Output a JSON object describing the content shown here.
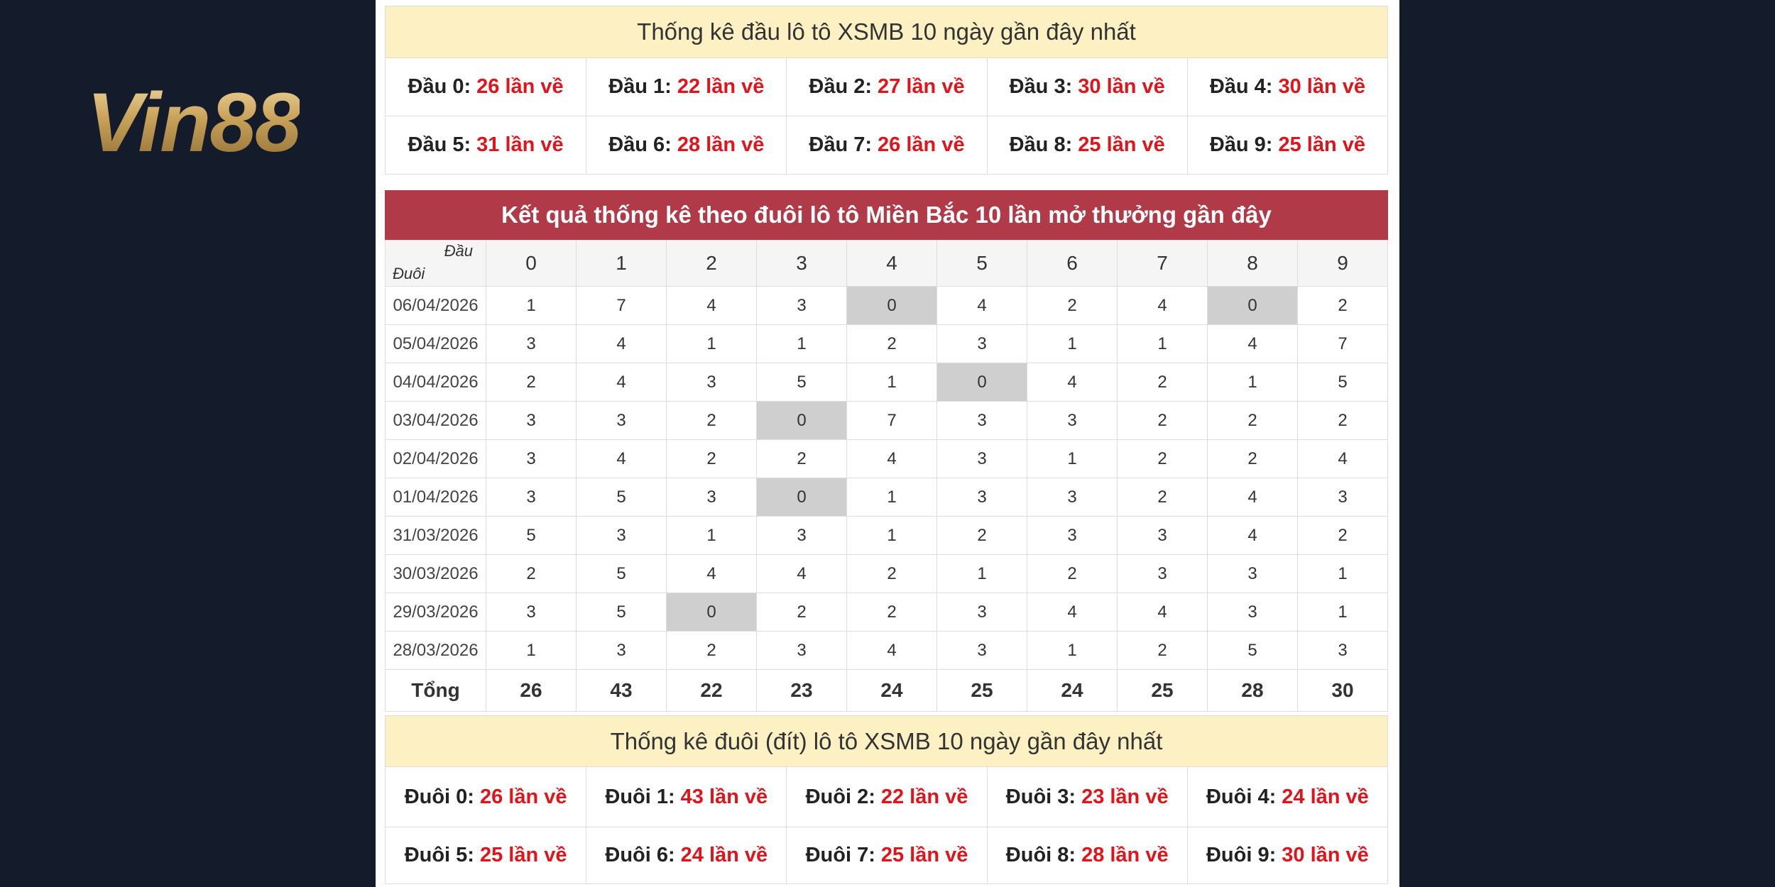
{
  "logo": "Vin88",
  "head_stats": {
    "title": "Thống kê đầu lô tô XSMB 10 ngày gần đây nhất",
    "items": [
      {
        "label": "Đầu 0:",
        "value": "26 lần về"
      },
      {
        "label": "Đầu 1:",
        "value": "22 lần về"
      },
      {
        "label": "Đầu 2:",
        "value": "27 lần về"
      },
      {
        "label": "Đầu 3:",
        "value": "30 lần về"
      },
      {
        "label": "Đầu 4:",
        "value": "30 lần về"
      },
      {
        "label": "Đầu 5:",
        "value": "31 lần về"
      },
      {
        "label": "Đầu 6:",
        "value": "28 lần về"
      },
      {
        "label": "Đầu 7:",
        "value": "26 lần về"
      },
      {
        "label": "Đầu 8:",
        "value": "25 lần về"
      },
      {
        "label": "Đầu 9:",
        "value": "25 lần về"
      }
    ]
  },
  "tail_table": {
    "title": "Kết quả thống kê theo đuôi lô tô Miền Bắc 10 lần mở thưởng gần đây",
    "corner_top": "Đầu",
    "corner_bottom": "Đuôi",
    "columns": [
      "0",
      "1",
      "2",
      "3",
      "4",
      "5",
      "6",
      "7",
      "8",
      "9"
    ],
    "rows": [
      {
        "date": "06/04/2026",
        "values": [
          1,
          7,
          4,
          3,
          0,
          4,
          2,
          4,
          0,
          2
        ]
      },
      {
        "date": "05/04/2026",
        "values": [
          3,
          4,
          1,
          1,
          2,
          3,
          1,
          1,
          4,
          7
        ]
      },
      {
        "date": "04/04/2026",
        "values": [
          2,
          4,
          3,
          5,
          1,
          0,
          4,
          2,
          1,
          5
        ]
      },
      {
        "date": "03/04/2026",
        "values": [
          3,
          3,
          2,
          0,
          7,
          3,
          3,
          2,
          2,
          2
        ]
      },
      {
        "date": "02/04/2026",
        "values": [
          3,
          4,
          2,
          2,
          4,
          3,
          1,
          2,
          2,
          4
        ]
      },
      {
        "date": "01/04/2026",
        "values": [
          3,
          5,
          3,
          0,
          1,
          3,
          3,
          2,
          4,
          3
        ]
      },
      {
        "date": "31/03/2026",
        "values": [
          5,
          3,
          1,
          3,
          1,
          2,
          3,
          3,
          4,
          2
        ]
      },
      {
        "date": "30/03/2026",
        "values": [
          2,
          5,
          4,
          4,
          2,
          1,
          2,
          3,
          3,
          1
        ]
      },
      {
        "date": "29/03/2026",
        "values": [
          3,
          5,
          0,
          2,
          2,
          3,
          4,
          4,
          3,
          1
        ]
      },
      {
        "date": "28/03/2026",
        "values": [
          1,
          3,
          2,
          3,
          4,
          3,
          1,
          2,
          5,
          3
        ]
      }
    ],
    "total_label": "Tổng",
    "totals": [
      26,
      43,
      22,
      23,
      24,
      25,
      24,
      25,
      28,
      30
    ]
  },
  "tail_stats": {
    "title": "Thống kê đuôi (đít) lô tô XSMB 10 ngày gần đây nhất",
    "items": [
      {
        "label": "Đuôi 0:",
        "value": "26 lần về"
      },
      {
        "label": "Đuôi 1:",
        "value": "43 lần về"
      },
      {
        "label": "Đuôi 2:",
        "value": "22 lần về"
      },
      {
        "label": "Đuôi 3:",
        "value": "23 lần về"
      },
      {
        "label": "Đuôi 4:",
        "value": "24 lần về"
      },
      {
        "label": "Đuôi 5:",
        "value": "25 lần về"
      },
      {
        "label": "Đuôi 6:",
        "value": "24 lần về"
      },
      {
        "label": "Đuôi 7:",
        "value": "25 lần về"
      },
      {
        "label": "Đuôi 8:",
        "value": "28 lần về"
      },
      {
        "label": "Đuôi 9:",
        "value": "30 lần về"
      }
    ]
  }
}
